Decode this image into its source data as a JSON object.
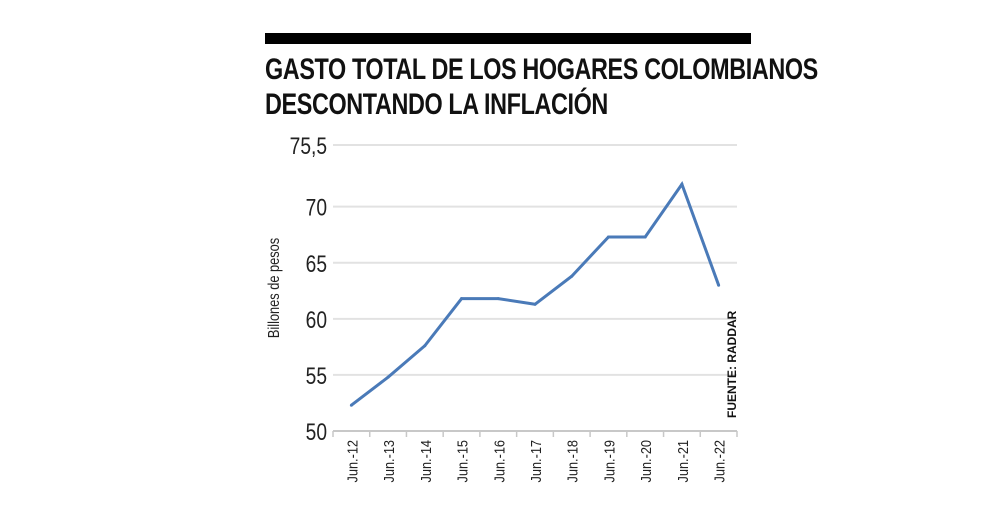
{
  "chart_data": {
    "type": "line",
    "title": "GASTO TOTAL DE LOS HOGARES COLOMBIANOS",
    "subtitle": "DESCONTANDO LA INFLACIÓN",
    "xlabel": "",
    "ylabel": "Billones de pesos",
    "source": "FUENTE: RADDAR",
    "categories": [
      "Jun.-12",
      "Jun.-13",
      "Jun.-14",
      "Jun.-15",
      "Jun.-16",
      "Jun.-17",
      "Jun.-18",
      "Jun.-19",
      "Jun.-20",
      "Jun.-21",
      "Jun.-22"
    ],
    "values": [
      52.3,
      54.8,
      57.6,
      61.8,
      61.8,
      61.3,
      63.8,
      67.3,
      67.3,
      72.0,
      63.0
    ],
    "ylim": [
      50,
      75.5
    ],
    "yticks": [
      50,
      55,
      60,
      65,
      70,
      75.5
    ],
    "ytick_labels": [
      "50",
      "55",
      "60",
      "65",
      "70",
      "75,5"
    ],
    "grid": true,
    "line_color": "#4a7ab8",
    "grid_color": "#e2e2e2"
  }
}
